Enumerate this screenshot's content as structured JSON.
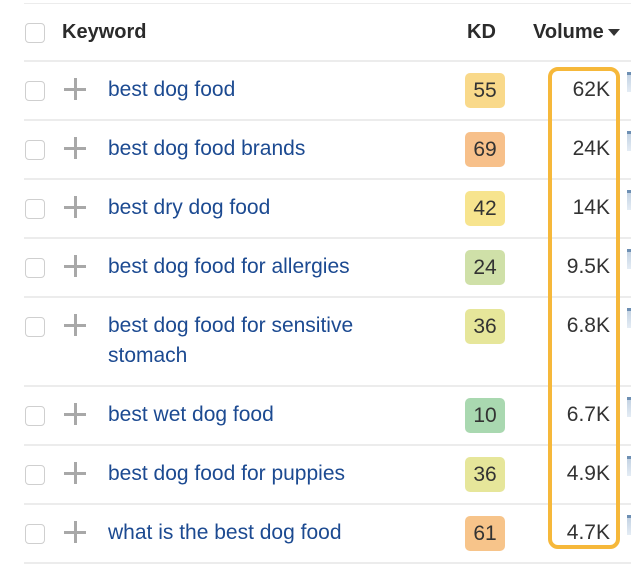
{
  "header": {
    "keyword_label": "Keyword",
    "kd_label": "KD",
    "volume_label": "Volume",
    "sort_icon": "caret-down"
  },
  "rows": [
    {
      "keyword": "best dog food",
      "kd": "55",
      "kd_color": "#f9d98a",
      "volume": "62K"
    },
    {
      "keyword": "best dog food brands",
      "kd": "69",
      "kd_color": "#f7c08a",
      "volume": "24K"
    },
    {
      "keyword": "best dry dog food",
      "kd": "42",
      "kd_color": "#f7e48e",
      "volume": "14K"
    },
    {
      "keyword": "best dog food for allergies",
      "kd": "24",
      "kd_color": "#cfe0a8",
      "volume": "9.5K"
    },
    {
      "keyword": "best dog food for sensitive stomach",
      "kd": "36",
      "kd_color": "#e6e69a",
      "volume": "6.8K"
    },
    {
      "keyword": "best wet dog food",
      "kd": "10",
      "kd_color": "#a9d8b0",
      "volume": "6.7K"
    },
    {
      "keyword": "best dog food for puppies",
      "kd": "36",
      "kd_color": "#e6e69a",
      "volume": "4.9K"
    },
    {
      "keyword": "what is the best dog food",
      "kd": "61",
      "kd_color": "#f7c48a",
      "volume": "4.7K"
    }
  ],
  "highlight_color": "#f6b83a",
  "link_color": "#1c4a91"
}
